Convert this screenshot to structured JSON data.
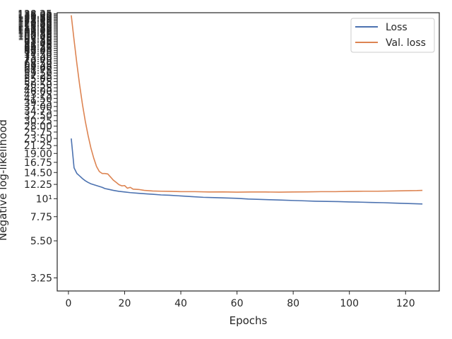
{
  "chart_data": {
    "type": "line",
    "xlabel": "Epochs",
    "ylabel": "Negative log-likelihood",
    "xlim": [
      -4,
      132
    ],
    "ylim": [
      2.7,
      140
    ],
    "yscale": "log",
    "grid": false,
    "legend_position": "top-right",
    "x_ticks": [
      0,
      20,
      40,
      60,
      80,
      100,
      120
    ],
    "y_ticks": [
      {
        "value": 3.25,
        "label": "3.25"
      },
      {
        "value": 5.5,
        "label": "5.50"
      },
      {
        "value": 7.75,
        "label": "7.75"
      },
      {
        "value": 10,
        "label": "10¹"
      },
      {
        "value": 12.25,
        "label": "12.25"
      },
      {
        "value": 14.5,
        "label": "14.50"
      },
      {
        "value": 16.75,
        "label": "16.75"
      },
      {
        "value": 19.0,
        "label": "19.00"
      },
      {
        "value": 21.25,
        "label": "21.25"
      },
      {
        "value": 23.5,
        "label": "23.50"
      },
      {
        "value": 25.75,
        "label": "25.75"
      },
      {
        "value": 28.0,
        "label": "28.00"
      },
      {
        "value": 30.25,
        "label": "30.25"
      },
      {
        "value": 32.5,
        "label": "32.50"
      },
      {
        "value": 34.75,
        "label": "34.75"
      },
      {
        "value": 37.0,
        "label": "37.00"
      },
      {
        "value": 39.25,
        "label": "39.25"
      },
      {
        "value": 41.5,
        "label": "41.50"
      },
      {
        "value": 43.75,
        "label": "43.75"
      },
      {
        "value": 46.0,
        "label": "46.00"
      },
      {
        "value": 48.25,
        "label": "48.25"
      },
      {
        "value": 50.5,
        "label": "50.50"
      },
      {
        "value": 52.75,
        "label": "52.75"
      },
      {
        "value": 55.0,
        "label": "55.00"
      },
      {
        "value": 57.25,
        "label": "57.25"
      },
      {
        "value": 59.5,
        "label": "59.50"
      },
      {
        "value": 61.75,
        "label": "61.75"
      },
      {
        "value": 64.0,
        "label": "64.00"
      },
      {
        "value": 66.25,
        "label": "66.25"
      },
      {
        "value": 68.5,
        "label": "68.50"
      },
      {
        "value": 70.75,
        "label": "70.75"
      },
      {
        "value": 73.0,
        "label": "73.00"
      },
      {
        "value": 75.25,
        "label": "75.25"
      },
      {
        "value": 77.5,
        "label": "77.50"
      },
      {
        "value": 79.75,
        "label": "79.75"
      },
      {
        "value": 82.0,
        "label": "82.00"
      },
      {
        "value": 84.25,
        "label": "84.25"
      },
      {
        "value": 86.5,
        "label": "86.50"
      },
      {
        "value": 88.75,
        "label": "88.75"
      },
      {
        "value": 91.0,
        "label": "91.00"
      },
      {
        "value": 93.25,
        "label": "93.25"
      },
      {
        "value": 95.5,
        "label": "95.50"
      },
      {
        "value": 97.75,
        "label": "97.75"
      },
      {
        "value": 100.0,
        "label": "100.00"
      },
      {
        "value": 102.25,
        "label": "102.25"
      },
      {
        "value": 104.5,
        "label": "104.50"
      },
      {
        "value": 106.75,
        "label": "106.75"
      },
      {
        "value": 109.0,
        "label": "109.00"
      },
      {
        "value": 111.25,
        "label": "111.25"
      },
      {
        "value": 113.5,
        "label": "113.50"
      },
      {
        "value": 115.75,
        "label": "115.75"
      },
      {
        "value": 118.0,
        "label": "118.00"
      },
      {
        "value": 120.25,
        "label": "120.25"
      },
      {
        "value": 122.5,
        "label": "122.50"
      },
      {
        "value": 124.75,
        "label": "124.75"
      },
      {
        "value": 127.0,
        "label": "127.00"
      },
      {
        "value": 129.25,
        "label": "129.25"
      },
      {
        "value": 131.5,
        "label": "131.50"
      },
      {
        "value": 133.75,
        "label": "133.75"
      },
      {
        "value": 136.0,
        "label": "136.00"
      },
      {
        "value": 138.25,
        "label": "138.25"
      }
    ],
    "series": [
      {
        "name": "Loss",
        "color": "#4c72b0",
        "points": [
          [
            1,
            23.5
          ],
          [
            2,
            15.5
          ],
          [
            3,
            14.3
          ],
          [
            4,
            13.8
          ],
          [
            5,
            13.3
          ],
          [
            6,
            12.9
          ],
          [
            7,
            12.6
          ],
          [
            8,
            12.35
          ],
          [
            9,
            12.2
          ],
          [
            10,
            12.05
          ],
          [
            11,
            11.9
          ],
          [
            12,
            11.75
          ],
          [
            13,
            11.55
          ],
          [
            14,
            11.45
          ],
          [
            15,
            11.35
          ],
          [
            16,
            11.25
          ],
          [
            18,
            11.1
          ],
          [
            20,
            11.0
          ],
          [
            22,
            10.9
          ],
          [
            25,
            10.8
          ],
          [
            28,
            10.7
          ],
          [
            30,
            10.65
          ],
          [
            33,
            10.55
          ],
          [
            36,
            10.5
          ],
          [
            40,
            10.4
          ],
          [
            44,
            10.3
          ],
          [
            48,
            10.2
          ],
          [
            52,
            10.15
          ],
          [
            56,
            10.1
          ],
          [
            60,
            10.05
          ],
          [
            64,
            9.95
          ],
          [
            68,
            9.9
          ],
          [
            72,
            9.85
          ],
          [
            76,
            9.8
          ],
          [
            80,
            9.75
          ],
          [
            84,
            9.7
          ],
          [
            88,
            9.65
          ],
          [
            92,
            9.62
          ],
          [
            96,
            9.6
          ],
          [
            100,
            9.55
          ],
          [
            104,
            9.52
          ],
          [
            108,
            9.48
          ],
          [
            112,
            9.45
          ],
          [
            116,
            9.4
          ],
          [
            120,
            9.35
          ],
          [
            124,
            9.3
          ],
          [
            126,
            9.28
          ]
        ]
      },
      {
        "name": "Val. loss",
        "color": "#dd8452",
        "points": [
          [
            1,
            135
          ],
          [
            2,
            95
          ],
          [
            3,
            68
          ],
          [
            4,
            50
          ],
          [
            5,
            38
          ],
          [
            6,
            30
          ],
          [
            7,
            24.5
          ],
          [
            8,
            20.5
          ],
          [
            9,
            17.8
          ],
          [
            10,
            15.8
          ],
          [
            11,
            14.7
          ],
          [
            12,
            14.3
          ],
          [
            13,
            14.3
          ],
          [
            14,
            14.2
          ],
          [
            15,
            13.6
          ],
          [
            16,
            13.0
          ],
          [
            17,
            12.6
          ],
          [
            18,
            12.2
          ],
          [
            19,
            12.0
          ],
          [
            20,
            12.05
          ],
          [
            21,
            11.6
          ],
          [
            22,
            11.75
          ],
          [
            23,
            11.45
          ],
          [
            25,
            11.4
          ],
          [
            27,
            11.25
          ],
          [
            30,
            11.15
          ],
          [
            33,
            11.12
          ],
          [
            36,
            11.1
          ],
          [
            40,
            11.05
          ],
          [
            45,
            11.05
          ],
          [
            50,
            11.0
          ],
          [
            55,
            11.02
          ],
          [
            60,
            10.98
          ],
          [
            65,
            11.0
          ],
          [
            70,
            11.0
          ],
          [
            75,
            10.98
          ],
          [
            80,
            11.0
          ],
          [
            85,
            11.02
          ],
          [
            90,
            11.05
          ],
          [
            95,
            11.05
          ],
          [
            100,
            11.1
          ],
          [
            105,
            11.12
          ],
          [
            110,
            11.12
          ],
          [
            115,
            11.15
          ],
          [
            120,
            11.2
          ],
          [
            124,
            11.22
          ],
          [
            126,
            11.25
          ]
        ]
      }
    ]
  }
}
